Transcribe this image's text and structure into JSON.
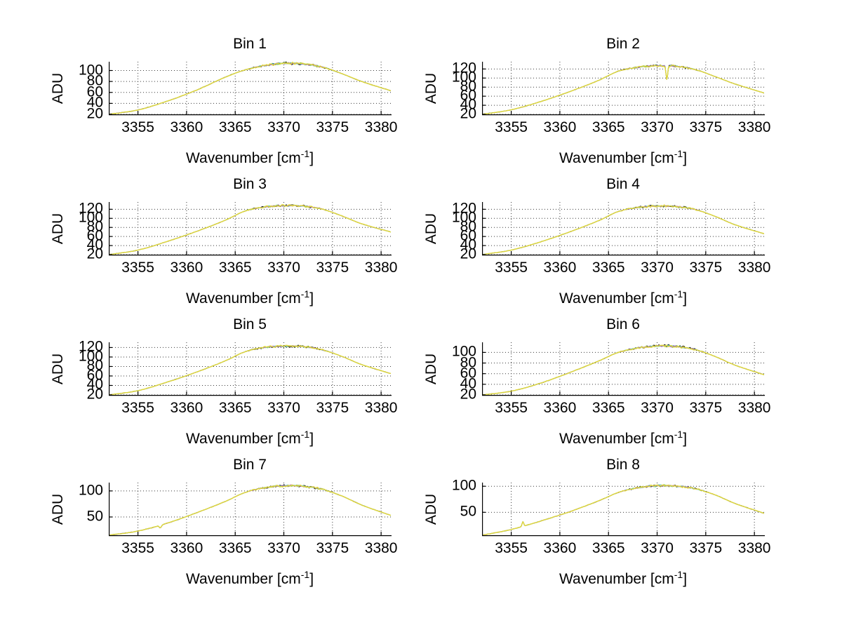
{
  "figure": {
    "background": "#ffffff"
  },
  "chart_data": {
    "type": "line",
    "layout": "4x2 subplot grid",
    "ylabel": "ADU",
    "xlabel": {
      "prefix": "Wavenumber [cm",
      "sup": "-1",
      "suffix": "]"
    },
    "xlim": [
      3352,
      3381
    ],
    "x_ticks": [
      3355,
      3360,
      3365,
      3370,
      3375,
      3380
    ],
    "grid": true,
    "colors": {
      "line_yellow": "#e0d83a",
      "line_green": "#8cc63f",
      "line_cyan": "#4fc3c3",
      "line_magenta": "#b565b5",
      "line_black": "#1a1a1a",
      "grid_dots": "#3a3a3a",
      "axis": "#000000",
      "text": "#000000"
    },
    "control_x": [
      3352,
      3355,
      3358,
      3361,
      3364,
      3366,
      3368,
      3370,
      3372,
      3374,
      3376,
      3378,
      3381
    ],
    "subplots": [
      {
        "title": "Bin 1",
        "ylim": [
          20,
          116
        ],
        "y_ticks": [
          20,
          40,
          60,
          80,
          100
        ],
        "values": [
          20,
          28,
          44,
          64,
          88,
          101,
          109,
          113,
          112,
          106,
          94,
          80,
          63
        ],
        "spikes": []
      },
      {
        "title": "Bin 2",
        "ylim": [
          20,
          136
        ],
        "y_ticks": [
          20,
          40,
          60,
          80,
          100,
          120
        ],
        "values": [
          20,
          30,
          48,
          70,
          95,
          115,
          124,
          127,
          126,
          118,
          103,
          87,
          67
        ],
        "spikes": [
          {
            "x": 3371.0,
            "dy": -31,
            "w": 0.12
          }
        ]
      },
      {
        "title": "Bin 3",
        "ylim": [
          20,
          136
        ],
        "y_ticks": [
          20,
          40,
          60,
          80,
          100,
          120
        ],
        "values": [
          20,
          30,
          49,
          71,
          96,
          116,
          125,
          128,
          127,
          120,
          105,
          88,
          70
        ],
        "spikes": []
      },
      {
        "title": "Bin 4",
        "ylim": [
          20,
          136
        ],
        "y_ticks": [
          20,
          40,
          60,
          80,
          100,
          120
        ],
        "values": [
          20,
          30,
          48,
          70,
          95,
          115,
          124,
          127,
          126,
          119,
          104,
          86,
          66
        ],
        "spikes": []
      },
      {
        "title": "Bin 5",
        "ylim": [
          20,
          131
        ],
        "y_ticks": [
          20,
          40,
          60,
          80,
          100,
          120
        ],
        "values": [
          20,
          29,
          47,
          68,
          92,
          111,
          120,
          123,
          122,
          115,
          101,
          84,
          65
        ],
        "spikes": []
      },
      {
        "title": "Bin 6",
        "ylim": [
          20,
          119
        ],
        "y_ticks": [
          20,
          40,
          60,
          80,
          100
        ],
        "values": [
          20,
          27,
          42,
          62,
          84,
          100,
          108,
          112,
          111,
          105,
          92,
          76,
          58
        ],
        "spikes": []
      },
      {
        "title": "Bin 7",
        "ylim": [
          15,
          116
        ],
        "y_ticks": [
          50,
          100
        ],
        "values": [
          15,
          23,
          38,
          58,
          80,
          97,
          106,
          110,
          109,
          103,
          90,
          73,
          53
        ],
        "spikes": [
          {
            "x": 3357.3,
            "dy": -5,
            "w": 0.15
          }
        ]
      },
      {
        "title": "Bin 8",
        "ylim": [
          6,
          107
        ],
        "y_ticks": [
          50,
          100
        ],
        "values": [
          6,
          17,
          33,
          51,
          72,
          88,
          97,
          101,
          100,
          95,
          83,
          67,
          48
        ],
        "spikes": [
          {
            "x": 3356.2,
            "dy": 9,
            "w": 0.12
          }
        ]
      }
    ]
  }
}
